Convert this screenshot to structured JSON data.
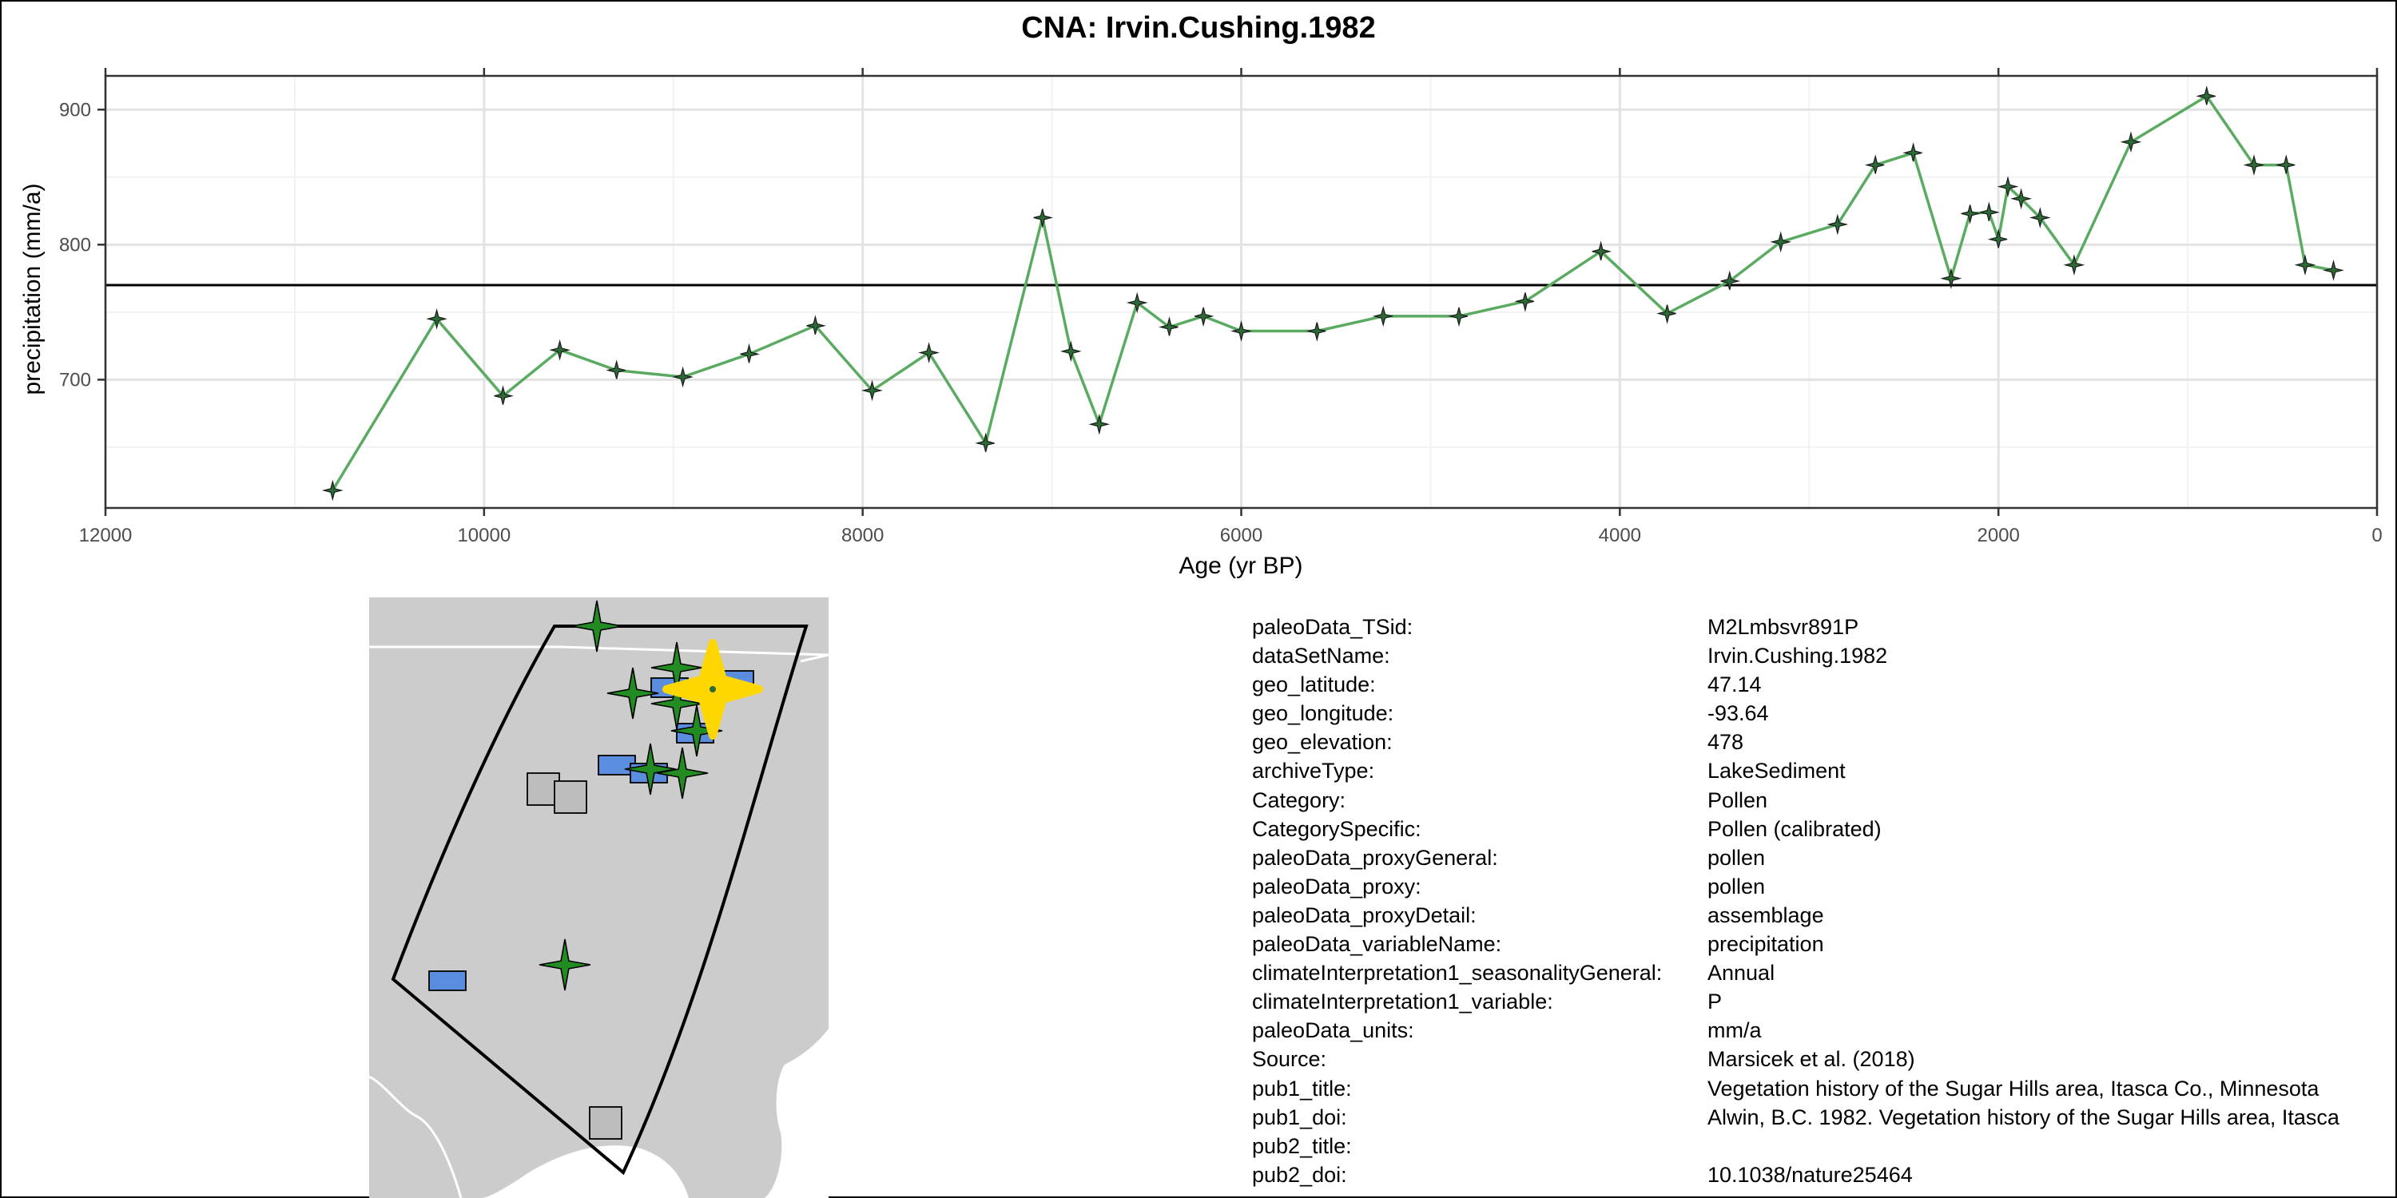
{
  "chart_data": {
    "type": "line",
    "title": "CNA: Irvin.Cushing.1982",
    "xlabel": "Age (yr BP)",
    "ylabel": "precipitation (mm/a)",
    "x_reversed": true,
    "xlim": [
      12000,
      0
    ],
    "ylim": [
      605,
      925
    ],
    "x_ticks": [
      12000,
      10000,
      8000,
      6000,
      4000,
      2000,
      0
    ],
    "x_tick_labels": [
      "12000",
      "10000",
      "8000",
      "6000",
      "4000",
      "2000",
      "0"
    ],
    "y_ticks": [
      700,
      800,
      900
    ],
    "y_tick_labels": [
      "700",
      "800",
      "900"
    ],
    "grid": true,
    "reference_line": 770,
    "line_color": "#5aab61",
    "marker_color": "#2d6b36",
    "series": [
      {
        "x": [
          10800,
          10250,
          9900,
          9600,
          9300,
          8950,
          8600,
          8250,
          7950,
          7650,
          7350,
          7050,
          6900,
          6750,
          6550,
          6380,
          6200,
          6000,
          5600,
          5250,
          4850,
          4500,
          4100,
          3750,
          3420,
          3150,
          2850,
          2650,
          2450,
          2250,
          2150,
          2050,
          2000,
          1950,
          1880,
          1780,
          1600,
          1300,
          900,
          650,
          480,
          380,
          230
        ],
        "y": [
          618,
          745,
          688,
          722,
          707,
          702,
          719,
          740,
          692,
          720,
          653,
          820,
          721,
          667,
          757,
          739,
          747,
          736,
          736,
          747,
          747,
          758,
          795,
          749,
          773,
          802,
          815,
          859,
          868,
          775,
          823,
          824,
          804,
          843,
          834,
          820,
          785,
          876,
          910,
          859,
          859,
          785,
          781
        ]
      }
    ]
  },
  "map": {
    "land_color": "#cccccc",
    "star_color": "#228b22",
    "highlight_color": "#ffd700",
    "rect_color": "#5b8ddf",
    "square_color": "#bdbdbd"
  },
  "metadata": [
    {
      "key": "paleoData_TSid:",
      "value": "M2Lmbsvr891P"
    },
    {
      "key": "dataSetName:",
      "value": "Irvin.Cushing.1982"
    },
    {
      "key": "geo_latitude:",
      "value": "47.14"
    },
    {
      "key": "geo_longitude:",
      "value": "-93.64"
    },
    {
      "key": "geo_elevation:",
      "value": "478"
    },
    {
      "key": "archiveType:",
      "value": "LakeSediment"
    },
    {
      "key": "Category:",
      "value": "Pollen"
    },
    {
      "key": "CategorySpecific:",
      "value": "Pollen (calibrated)"
    },
    {
      "key": "paleoData_proxyGeneral:",
      "value": "pollen"
    },
    {
      "key": "paleoData_proxy:",
      "value": "pollen"
    },
    {
      "key": "paleoData_proxyDetail:",
      "value": "assemblage"
    },
    {
      "key": "paleoData_variableName:",
      "value": "precipitation"
    },
    {
      "key": "climateInterpretation1_seasonalityGeneral:",
      "value": "Annual"
    },
    {
      "key": "climateInterpretation1_variable:",
      "value": "P"
    },
    {
      "key": "paleoData_units:",
      "value": "mm/a"
    },
    {
      "key": "Source:",
      "value": "Marsicek et al. (2018)"
    },
    {
      "key": "pub1_title:",
      "value": "Vegetation history of the Sugar Hills area, Itasca Co., Minnesota"
    },
    {
      "key": "pub1_doi:",
      "value": "Alwin, B.C. 1982. Vegetation history of the Sugar Hills area, Itasca"
    },
    {
      "key": "pub2_title:",
      "value": ""
    },
    {
      "key": "pub2_doi:",
      "value": "10.1038/nature25464"
    }
  ]
}
